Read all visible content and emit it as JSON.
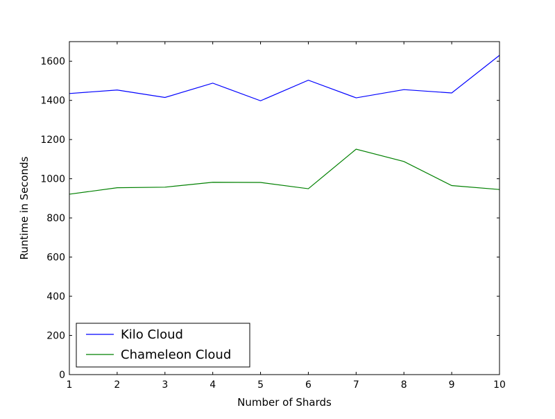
{
  "chart_data": {
    "type": "line",
    "title": "",
    "xlabel": "Number of Shards",
    "ylabel": "Runtime in Seconds",
    "x": [
      1,
      2,
      3,
      4,
      5,
      6,
      7,
      8,
      9,
      10
    ],
    "xlim": [
      1,
      10
    ],
    "ylim": [
      0,
      1700
    ],
    "xticks": [
      1,
      2,
      3,
      4,
      5,
      6,
      7,
      8,
      9,
      10
    ],
    "yticks": [
      0,
      200,
      400,
      600,
      800,
      1000,
      1200,
      1400,
      1600
    ],
    "grid": false,
    "legend_position": "lower-left",
    "series": [
      {
        "name": "Kilo Cloud",
        "color": "#0000ff",
        "values": [
          1435,
          1453,
          1415,
          1488,
          1398,
          1503,
          1413,
          1455,
          1438,
          1630
        ]
      },
      {
        "name": "Chameleon Cloud",
        "color": "#008000",
        "values": [
          921,
          954,
          957,
          982,
          981,
          949,
          1151,
          1088,
          965,
          945
        ]
      }
    ]
  }
}
